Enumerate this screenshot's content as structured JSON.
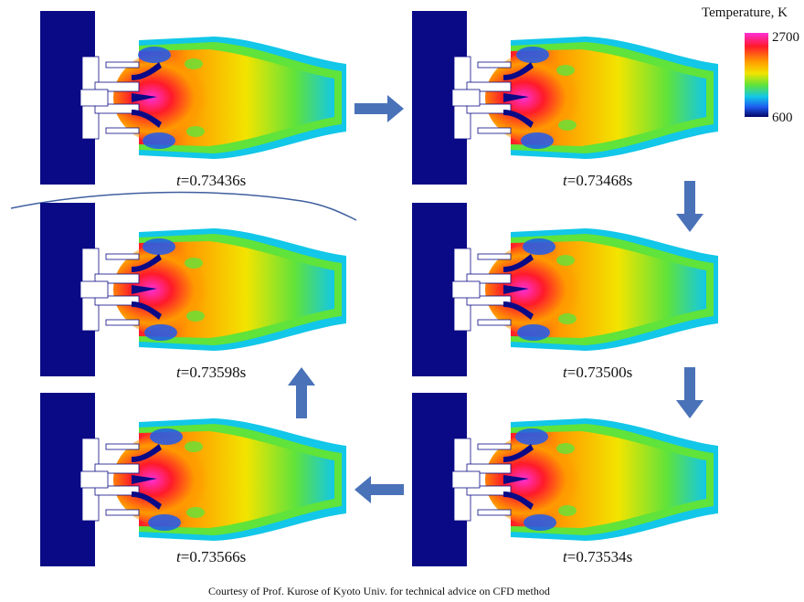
{
  "legend": {
    "title": "Temperature, K",
    "max_label": "2700",
    "min_label": "600",
    "colors": [
      "#ff2fd5",
      "#ff1a2a",
      "#ff9a00",
      "#f2e400",
      "#60e33a",
      "#12c7e8",
      "#1d5cf0",
      "#050565"
    ]
  },
  "panels": [
    {
      "t_symbol": "t",
      "time": "=0.73436s"
    },
    {
      "t_symbol": "t",
      "time": "=0.73468s"
    },
    {
      "t_symbol": "t",
      "time": "=0.73500s"
    },
    {
      "t_symbol": "t",
      "time": "=0.73534s"
    },
    {
      "t_symbol": "t",
      "time": "=0.73566s"
    },
    {
      "t_symbol": "t",
      "time": "=0.73598s"
    }
  ],
  "credit": "Courtesy of Prof. Kurose of Kyoto Univ.  for technical advice on CFD method",
  "colors": {
    "wall": "#0a0a86",
    "arrow": "#4a72b8",
    "wave": "#3f5f9f"
  }
}
